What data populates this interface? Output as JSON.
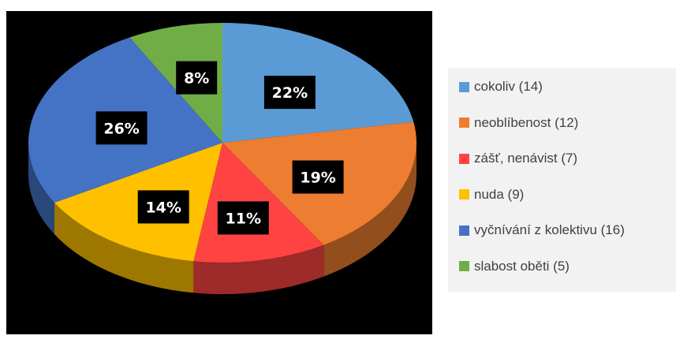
{
  "chart_data": {
    "type": "pie",
    "title": "",
    "legend_position": "right",
    "slices": [
      {
        "label": "cokoliv (14)",
        "value": 14,
        "percent_label": "22%",
        "color": "#5b9bd5"
      },
      {
        "label": "neoblíbenost (12)",
        "value": 12,
        "percent_label": "19%",
        "color": "#ed7d31"
      },
      {
        "label": "zášť, nenávist (7)",
        "value": 7,
        "percent_label": "11%",
        "color": "#ff4343"
      },
      {
        "label": "nuda (9)",
        "value": 9,
        "percent_label": "14%",
        "color": "#ffc000"
      },
      {
        "label": "vyčnívání z kolektivu (16)",
        "value": 16,
        "percent_label": "26%",
        "color": "#4472c4"
      },
      {
        "label": "slabost oběti (5)",
        "value": 5,
        "percent_label": "8%",
        "color": "#70ad47"
      }
    ]
  }
}
